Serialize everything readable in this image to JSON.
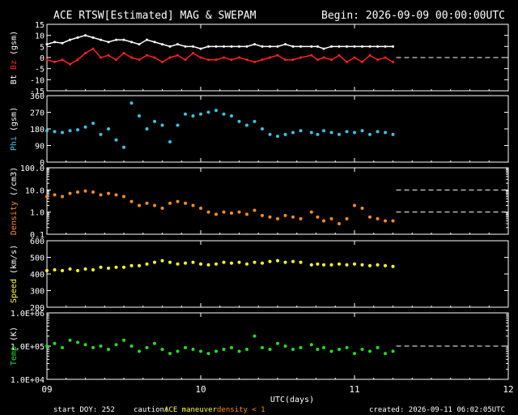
{
  "header": {
    "title": "ACE RTSW[Estimated] MAG & SWEPAM",
    "begin": "Begin: 2026-09-09 00:00:00UTC"
  },
  "footer": {
    "start_doy": "start DOY: 252",
    "caution_label": "caution:",
    "caution_maneuver": "ACE maneuver",
    "caution_density": "density < 1",
    "created": "created: 2026-09-11 06:02:05UTC"
  },
  "colors": {
    "bt": "#ffffff",
    "bz": "#ff2020",
    "phi": "#30c8e8",
    "density": "#ff8c1a",
    "speed": "#ffff20",
    "temp": "#20e020",
    "axis": "#ffffff",
    "caution": "#ff8c1a",
    "maneuver": "#ffff20"
  },
  "chart_data": [
    {
      "type": "line",
      "name": "mag",
      "ylabel_parts": [
        {
          "text": "Bt",
          "color": "#ffffff"
        },
        {
          "text": " Bz",
          "color": "#ff2020"
        },
        {
          "text": " (gsm)",
          "color": "#ffffff"
        }
      ],
      "ylim": [
        -15,
        15
      ],
      "yticks": [
        15,
        10,
        5,
        0,
        -5,
        -10,
        -15
      ],
      "ytick_labels": [
        "15",
        "10",
        "5",
        "0",
        "-5",
        "-10",
        "-15"
      ],
      "dashed_y": 0,
      "series": [
        {
          "name": "Bt",
          "color": "#ffffff",
          "x": [
            0,
            0.05,
            0.1,
            0.15,
            0.2,
            0.25,
            0.3,
            0.35,
            0.4,
            0.45,
            0.5,
            0.55,
            0.6,
            0.65,
            0.7,
            0.75,
            0.8,
            0.85,
            0.9,
            0.95,
            1.0,
            1.05,
            1.1,
            1.15,
            1.2,
            1.25,
            1.3,
            1.35,
            1.4,
            1.45,
            1.5,
            1.55,
            1.6,
            1.65,
            1.72,
            1.76,
            1.8,
            1.85,
            1.9,
            1.95,
            2.0,
            2.05,
            2.1,
            2.15,
            2.2,
            2.25
          ],
          "values": [
            6,
            7,
            6.5,
            8,
            9,
            10,
            9,
            8,
            7,
            8,
            8,
            7,
            6,
            8,
            7,
            6,
            5,
            6,
            5,
            5,
            4,
            5,
            5,
            5,
            5,
            5,
            5,
            6,
            5,
            5,
            5,
            6,
            5,
            5,
            5,
            5,
            4,
            5,
            5,
            5,
            5,
            5,
            5,
            5,
            5,
            5
          ]
        },
        {
          "name": "Bz",
          "color": "#ff2020",
          "x": [
            0,
            0.05,
            0.1,
            0.15,
            0.2,
            0.25,
            0.3,
            0.35,
            0.4,
            0.45,
            0.5,
            0.55,
            0.6,
            0.65,
            0.7,
            0.75,
            0.8,
            0.85,
            0.9,
            0.95,
            1.0,
            1.05,
            1.1,
            1.15,
            1.2,
            1.25,
            1.3,
            1.35,
            1.4,
            1.45,
            1.5,
            1.55,
            1.6,
            1.65,
            1.72,
            1.76,
            1.8,
            1.85,
            1.9,
            1.95,
            2.0,
            2.05,
            2.1,
            2.15,
            2.2,
            2.25
          ],
          "values": [
            -1,
            -2,
            -1,
            -3,
            -1,
            2,
            4,
            0,
            1,
            -1,
            2,
            0,
            -1,
            1,
            0,
            -2,
            0,
            1,
            -1,
            2,
            0,
            -1,
            -1,
            0,
            -1,
            0,
            -1,
            -2,
            -1,
            0,
            1,
            -1,
            -1,
            0,
            1,
            -1,
            0,
            -1,
            1,
            -2,
            0,
            -2,
            1,
            -1,
            0,
            -2
          ]
        }
      ]
    },
    {
      "type": "scatter",
      "name": "phi",
      "ylabel_parts": [
        {
          "text": "Phi",
          "color": "#30c8e8"
        },
        {
          "text": " (gsm)",
          "color": "#ffffff"
        }
      ],
      "ylim": [
        0,
        360
      ],
      "yticks": [
        360,
        270,
        180,
        90,
        0
      ],
      "ytick_labels": [
        "360",
        "270",
        "180",
        "90",
        "0"
      ],
      "series": [
        {
          "name": "Phi",
          "color": "#30c8e8",
          "x": [
            0,
            0.05,
            0.1,
            0.15,
            0.2,
            0.25,
            0.3,
            0.35,
            0.4,
            0.45,
            0.5,
            0.55,
            0.6,
            0.65,
            0.7,
            0.75,
            0.8,
            0.85,
            0.9,
            0.95,
            1.0,
            1.05,
            1.1,
            1.15,
            1.2,
            1.25,
            1.3,
            1.35,
            1.4,
            1.45,
            1.5,
            1.55,
            1.6,
            1.65,
            1.72,
            1.76,
            1.8,
            1.85,
            1.9,
            1.95,
            2.0,
            2.05,
            2.1,
            2.15,
            2.2,
            2.25
          ],
          "values": [
            170,
            165,
            160,
            170,
            175,
            190,
            210,
            150,
            180,
            120,
            80,
            320,
            250,
            180,
            220,
            200,
            110,
            200,
            260,
            250,
            260,
            270,
            280,
            260,
            250,
            220,
            200,
            220,
            180,
            150,
            140,
            150,
            160,
            170,
            160,
            150,
            170,
            160,
            150,
            165,
            160,
            170,
            150,
            165,
            160,
            150
          ]
        }
      ]
    },
    {
      "type": "scatter",
      "name": "density",
      "ylabel_parts": [
        {
          "text": "Density",
          "color": "#ff8c1a"
        },
        {
          "text": " (/cm3)",
          "color": "#ffffff"
        }
      ],
      "yscale": "log",
      "ylim": [
        0.1,
        100
      ],
      "yticks": [
        100,
        10,
        1,
        0.1
      ],
      "ytick_labels": [
        "100.0",
        "10.0",
        "1.0",
        "0.1"
      ],
      "dashed_y": [
        10,
        1
      ],
      "series": [
        {
          "name": "Density",
          "color": "#ff8c1a",
          "x": [
            0,
            0.05,
            0.1,
            0.15,
            0.2,
            0.25,
            0.3,
            0.35,
            0.4,
            0.45,
            0.5,
            0.55,
            0.6,
            0.65,
            0.7,
            0.75,
            0.8,
            0.85,
            0.9,
            0.95,
            1.0,
            1.05,
            1.1,
            1.15,
            1.2,
            1.25,
            1.3,
            1.35,
            1.4,
            1.45,
            1.5,
            1.55,
            1.6,
            1.65,
            1.72,
            1.76,
            1.8,
            1.85,
            1.9,
            1.95,
            2.0,
            2.05,
            2.1,
            2.15,
            2.2,
            2.25
          ],
          "values": [
            5,
            6,
            5,
            7,
            8,
            9,
            8,
            6,
            7,
            6,
            5,
            3,
            2,
            2.5,
            2,
            1.5,
            2.5,
            3,
            2.5,
            2,
            1.5,
            1,
            0.8,
            1,
            0.9,
            1,
            0.8,
            1.2,
            0.7,
            0.6,
            0.5,
            0.7,
            0.6,
            0.5,
            1,
            0.6,
            0.4,
            0.5,
            0.3,
            0.5,
            2,
            1.5,
            0.6,
            0.5,
            0.4,
            0.4
          ]
        }
      ]
    },
    {
      "type": "scatter",
      "name": "speed",
      "ylabel_parts": [
        {
          "text": "Speed",
          "color": "#ffff20"
        },
        {
          "text": " (km/s)",
          "color": "#ffffff"
        }
      ],
      "ylim": [
        200,
        600
      ],
      "yticks": [
        600,
        500,
        400,
        300,
        200
      ],
      "ytick_labels": [
        "600",
        "500",
        "400",
        "300",
        "200"
      ],
      "series": [
        {
          "name": "Speed",
          "color": "#ffff20",
          "x": [
            0,
            0.05,
            0.1,
            0.15,
            0.2,
            0.25,
            0.3,
            0.35,
            0.4,
            0.45,
            0.5,
            0.55,
            0.6,
            0.65,
            0.7,
            0.75,
            0.8,
            0.85,
            0.9,
            0.95,
            1.0,
            1.05,
            1.1,
            1.15,
            1.2,
            1.25,
            1.3,
            1.35,
            1.4,
            1.45,
            1.5,
            1.55,
            1.6,
            1.65,
            1.72,
            1.76,
            1.8,
            1.85,
            1.9,
            1.95,
            2.0,
            2.05,
            2.1,
            2.15,
            2.2,
            2.25
          ],
          "values": [
            420,
            425,
            420,
            430,
            420,
            430,
            425,
            440,
            435,
            440,
            440,
            450,
            450,
            460,
            470,
            480,
            470,
            460,
            465,
            470,
            460,
            455,
            460,
            470,
            465,
            470,
            460,
            470,
            465,
            475,
            480,
            470,
            475,
            470,
            455,
            460,
            455,
            455,
            460,
            455,
            460,
            455,
            450,
            455,
            450,
            445
          ]
        }
      ]
    },
    {
      "type": "scatter",
      "name": "temp",
      "ylabel_parts": [
        {
          "text": "Temp",
          "color": "#20e020"
        },
        {
          "text": " (K)",
          "color": "#ffffff"
        }
      ],
      "yscale": "log",
      "ylim": [
        10000,
        1000000
      ],
      "yticks": [
        1000000,
        100000,
        10000
      ],
      "ytick_labels": [
        "1.0E+06",
        "1.0E+05",
        "1.0E+04"
      ],
      "dashed_y": [
        100000
      ],
      "series": [
        {
          "name": "Temp",
          "color": "#20e020",
          "x": [
            0,
            0.05,
            0.1,
            0.15,
            0.2,
            0.25,
            0.3,
            0.35,
            0.4,
            0.45,
            0.5,
            0.55,
            0.6,
            0.65,
            0.7,
            0.75,
            0.8,
            0.85,
            0.9,
            0.95,
            1.0,
            1.05,
            1.1,
            1.15,
            1.2,
            1.25,
            1.3,
            1.35,
            1.4,
            1.45,
            1.5,
            1.55,
            1.6,
            1.65,
            1.72,
            1.76,
            1.8,
            1.85,
            1.9,
            1.95,
            2.0,
            2.05,
            2.1,
            2.15,
            2.2,
            2.25
          ],
          "values": [
            100000,
            120000,
            90000,
            150000,
            130000,
            110000,
            90000,
            100000,
            80000,
            110000,
            150000,
            100000,
            70000,
            90000,
            120000,
            80000,
            60000,
            70000,
            90000,
            80000,
            70000,
            60000,
            70000,
            80000,
            90000,
            70000,
            80000,
            200000,
            90000,
            80000,
            120000,
            100000,
            80000,
            90000,
            110000,
            80000,
            90000,
            70000,
            80000,
            90000,
            60000,
            80000,
            70000,
            90000,
            60000,
            70000
          ]
        }
      ]
    }
  ],
  "xaxis": {
    "xlim": [
      0,
      3
    ],
    "ticks": [
      0,
      1,
      2,
      3
    ],
    "tick_labels": [
      "09",
      "10",
      "11",
      "12"
    ],
    "label": "UTC(days)"
  }
}
